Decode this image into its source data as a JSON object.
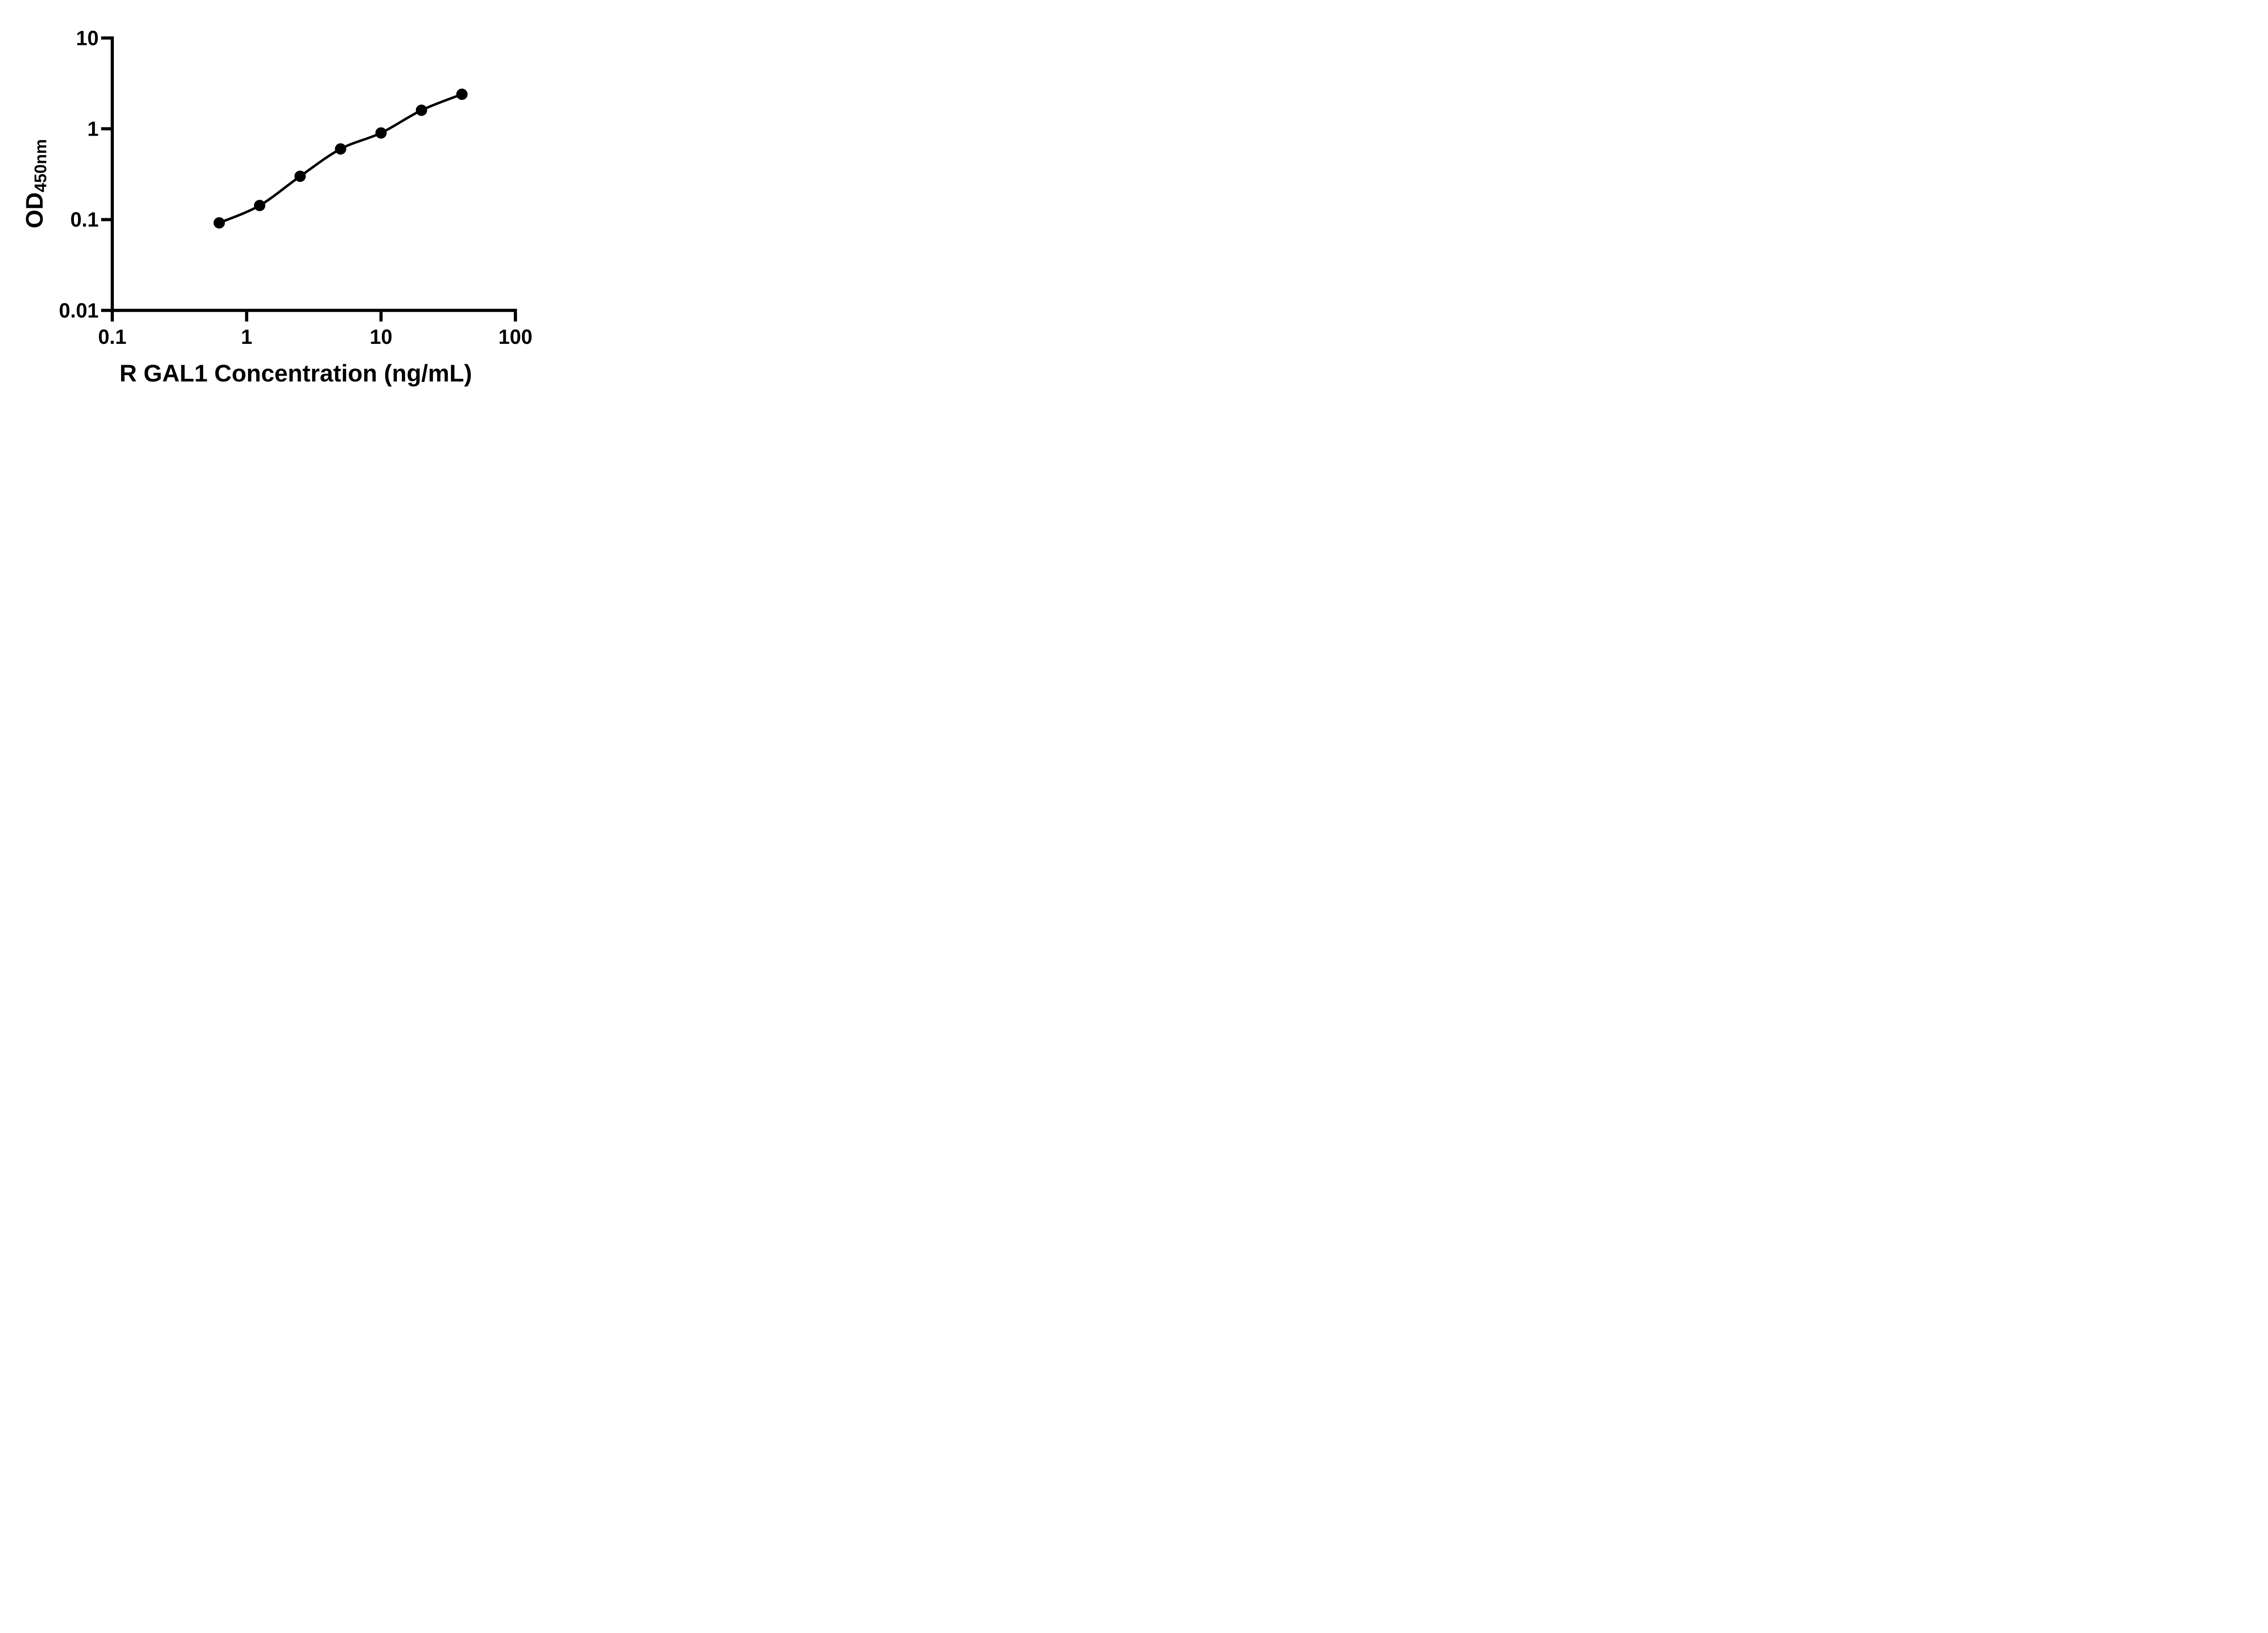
{
  "figure": {
    "background_color": "#ffffff",
    "ink_color": "#000000"
  },
  "chart_data": {
    "type": "scatter",
    "subtype": "log-log standard curve with smooth fit line",
    "title": "",
    "xlabel": "R GAL1 Concentration (ng/mL)",
    "ylabel_main": "OD",
    "ylabel_sub": "450nm",
    "x_scale": "log10",
    "y_scale": "log10",
    "xlim": [
      0.1,
      100
    ],
    "ylim": [
      0.01,
      10
    ],
    "x_ticks": [
      {
        "value": 0.1,
        "label": "0.1"
      },
      {
        "value": 1,
        "label": "1"
      },
      {
        "value": 10,
        "label": "10"
      },
      {
        "value": 100,
        "label": "100"
      }
    ],
    "y_ticks": [
      {
        "value": 10,
        "label": "10"
      },
      {
        "value": 1,
        "label": "1"
      },
      {
        "value": 0.1,
        "label": "0.1"
      },
      {
        "value": 0.01,
        "label": "0.01"
      }
    ],
    "grid": false,
    "legend_position": "none",
    "marker": "filled-circle",
    "marker_color": "#000000",
    "line_color": "#000000",
    "points": [
      {
        "x": 0.625,
        "y": 0.092
      },
      {
        "x": 1.25,
        "y": 0.143
      },
      {
        "x": 2.5,
        "y": 0.3
      },
      {
        "x": 5,
        "y": 0.6
      },
      {
        "x": 10,
        "y": 0.9
      },
      {
        "x": 20,
        "y": 1.6
      },
      {
        "x": 40,
        "y": 2.4
      }
    ]
  }
}
